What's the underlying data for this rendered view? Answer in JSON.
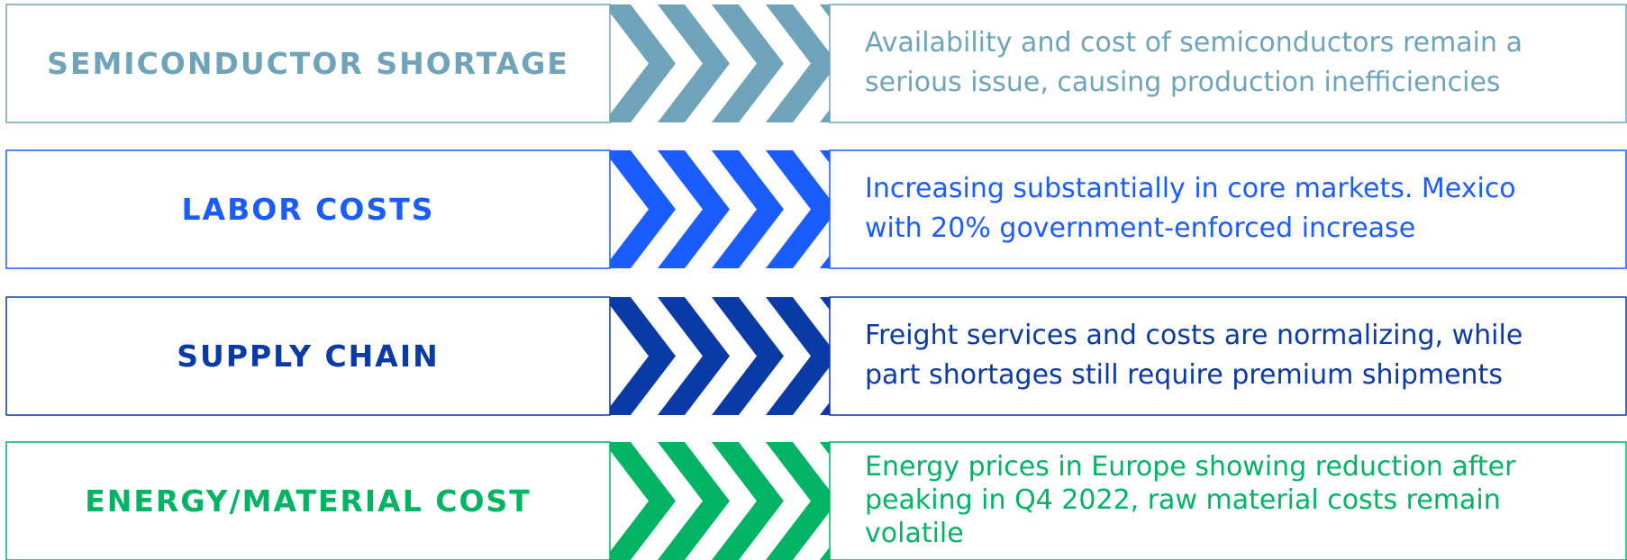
{
  "rows": [
    {
      "title": "SEMICONDUCTOR SHORTAGE",
      "color": "#6ea3b9",
      "lines": [
        "Availability and cost of semiconductors remain a",
        "serious issue, causing production inefficiencies"
      ]
    },
    {
      "title": "LABOR COSTS",
      "color": "#1a5cff",
      "lines": [
        "Increasing substantially in core markets. Mexico",
        "with 20% government-enforced increase"
      ]
    },
    {
      "title": "SUPPLY CHAIN",
      "color": "#0a3aa5",
      "lines": [
        "Freight services and costs  are normalizing, while",
        "part shortages still require premium shipments"
      ]
    },
    {
      "title": "ENERGY/MATERIAL COST",
      "color": "#00b463",
      "lines": [
        "Energy prices in Europe showing reduction after",
        "peaking in Q4 2022, raw material costs remain",
        "volatile"
      ]
    }
  ]
}
